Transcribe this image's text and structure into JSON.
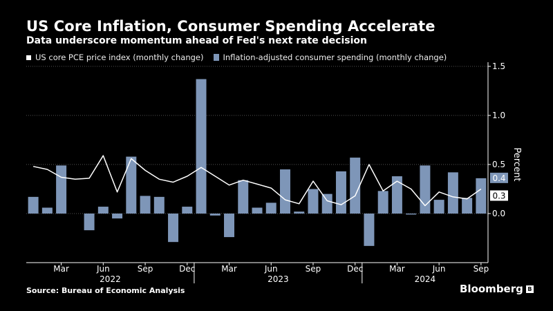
{
  "header": {
    "title": "US Core Inflation, Consumer Spending Accelerate",
    "subtitle": "Data underscore momentum ahead of Fed's next rate decision"
  },
  "legend": {
    "line_label": "US core PCE price index (monthly change)",
    "bar_label": "Inflation-adjusted consumer spending (monthly change)"
  },
  "footer": {
    "source": "Source: Bureau of Economic Analysis",
    "brand": "Bloomberg",
    "brand_mark": "B"
  },
  "colors": {
    "background": "#000000",
    "bars": "#7e96b8",
    "line": "#ffffff",
    "grid": "#555555"
  },
  "chart_data": {
    "type": "bar",
    "ylabel": "Percent",
    "ylim": [
      -0.5,
      1.5
    ],
    "yticks": [
      "1.5",
      "1.0",
      "0.5",
      "0.0"
    ],
    "ytick_values": [
      1.5,
      1.0,
      0.5,
      0.0
    ],
    "x": [
      "Jan 2022",
      "Feb 2022",
      "Mar 2022",
      "Apr 2022",
      "May 2022",
      "Jun 2022",
      "Jul 2022",
      "Aug 2022",
      "Sep 2022",
      "Oct 2022",
      "Nov 2022",
      "Dec 2022",
      "Jan 2023",
      "Feb 2023",
      "Mar 2023",
      "Apr 2023",
      "May 2023",
      "Jun 2023",
      "Jul 2023",
      "Aug 2023",
      "Sep 2023",
      "Oct 2023",
      "Nov 2023",
      "Dec 2023",
      "Jan 2024",
      "Feb 2024",
      "Mar 2024",
      "Apr 2024",
      "May 2024",
      "Jun 2024",
      "Jul 2024",
      "Aug 2024",
      "Sep 2024"
    ],
    "month_ticks": [
      {
        "label": "Mar",
        "index": 2
      },
      {
        "label": "Jun",
        "index": 5
      },
      {
        "label": "Sep",
        "index": 8
      },
      {
        "label": "Dec",
        "index": 11
      },
      {
        "label": "Mar",
        "index": 14
      },
      {
        "label": "Jun",
        "index": 17
      },
      {
        "label": "Sep",
        "index": 20
      },
      {
        "label": "Dec",
        "index": 23
      },
      {
        "label": "Mar",
        "index": 26
      },
      {
        "label": "Jun",
        "index": 29
      },
      {
        "label": "Sep",
        "index": 32
      }
    ],
    "year_labels": [
      {
        "label": "2022",
        "index": 5.5
      },
      {
        "label": "2023",
        "index": 17.5
      },
      {
        "label": "2024",
        "index": 28
      }
    ],
    "series": [
      {
        "name": "Inflation-adjusted consumer spending (monthly change)",
        "kind": "bar",
        "values": [
          0.17,
          0.06,
          0.49,
          0.0,
          -0.17,
          0.07,
          -0.05,
          0.58,
          0.18,
          0.17,
          -0.29,
          0.07,
          1.37,
          -0.02,
          -0.24,
          0.34,
          0.06,
          0.11,
          0.45,
          0.02,
          0.25,
          0.2,
          0.43,
          0.57,
          -0.33,
          0.23,
          0.38,
          -0.01,
          0.49,
          0.14,
          0.42,
          0.16,
          0.36
        ]
      },
      {
        "name": "US core PCE price index (monthly change)",
        "kind": "line",
        "values": [
          0.48,
          0.45,
          0.37,
          0.35,
          0.36,
          0.59,
          0.22,
          0.56,
          0.44,
          0.35,
          0.32,
          0.38,
          0.47,
          0.38,
          0.29,
          0.34,
          0.3,
          0.26,
          0.14,
          0.1,
          0.33,
          0.13,
          0.09,
          0.18,
          0.5,
          0.23,
          0.33,
          0.25,
          0.08,
          0.22,
          0.17,
          0.15,
          0.25
        ]
      }
    ],
    "last_value_labels": {
      "bar": "0.4",
      "line": "0.3"
    }
  }
}
